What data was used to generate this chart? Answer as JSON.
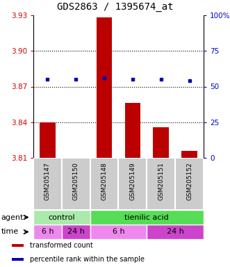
{
  "title": "GDS2863 / 1395674_at",
  "samples": [
    "GSM205147",
    "GSM205150",
    "GSM205148",
    "GSM205149",
    "GSM205151",
    "GSM205152"
  ],
  "bar_values": [
    3.84,
    3.81,
    3.928,
    3.856,
    3.836,
    3.816
  ],
  "percentile_values": [
    55,
    55,
    56,
    55,
    55,
    54
  ],
  "ylim_left": [
    3.81,
    3.93
  ],
  "ylim_right": [
    0,
    100
  ],
  "yticks_left": [
    3.81,
    3.84,
    3.87,
    3.9,
    3.93
  ],
  "yticks_right": [
    0,
    25,
    50,
    75,
    100
  ],
  "ytick_labels_left": [
    "3.81",
    "3.84",
    "3.87",
    "3.90",
    "3.93"
  ],
  "ytick_labels_right": [
    "0",
    "25",
    "50",
    "75",
    "100%"
  ],
  "hlines": [
    3.84,
    3.87,
    3.9
  ],
  "bar_color": "#bb0000",
  "percentile_color": "#0000bb",
  "bar_bottom": 3.81,
  "agent_row": [
    {
      "label": "control",
      "start": 0,
      "end": 2,
      "color": "#aaeaaa"
    },
    {
      "label": "tienilic acid",
      "start": 2,
      "end": 6,
      "color": "#55dd55"
    }
  ],
  "time_row": [
    {
      "label": "6 h",
      "start": 0,
      "end": 1,
      "color": "#ee88ee"
    },
    {
      "label": "24 h",
      "start": 1,
      "end": 2,
      "color": "#cc44cc"
    },
    {
      "label": "6 h",
      "start": 2,
      "end": 4,
      "color": "#ee88ee"
    },
    {
      "label": "24 h",
      "start": 4,
      "end": 6,
      "color": "#cc44cc"
    }
  ],
  "legend_items": [
    {
      "label": "transformed count",
      "color": "#bb0000"
    },
    {
      "label": "percentile rank within the sample",
      "color": "#0000bb"
    }
  ],
  "left_label_color": "#cc0000",
  "right_label_color": "#0000cc",
  "title_fontsize": 10,
  "tick_fontsize": 7.5,
  "legend_fontsize": 7,
  "agent_fontsize": 8,
  "time_fontsize": 8,
  "sample_fontsize": 6.5,
  "sample_bg_color": "#cccccc",
  "sample_border_color": "#ffffff"
}
